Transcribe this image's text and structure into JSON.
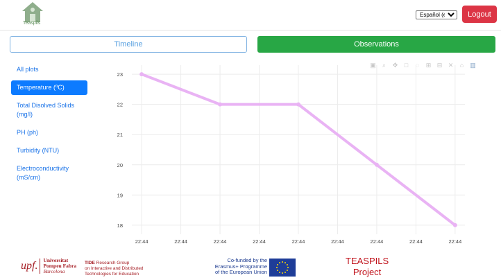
{
  "header": {
    "logo_text": "Teaspils",
    "language_selected": "Español (es)",
    "logout_label": "Logout"
  },
  "tabs": {
    "timeline_label": "Timeline",
    "observations_label": "Observations"
  },
  "sidebar": {
    "items": [
      {
        "label": "All plots",
        "active": false
      },
      {
        "label": "Temperature (ºC)",
        "active": true
      },
      {
        "label": "Total Disolved Solids (mg/l)",
        "active": false
      },
      {
        "label": "PH (ph)",
        "active": false
      },
      {
        "label": "Turbidity (NTU)",
        "active": false
      },
      {
        "label": "Electroconductivity (mS/cm)",
        "active": false
      }
    ]
  },
  "modebar_icons": [
    "camera-icon",
    "zoom-icon",
    "pan-icon",
    "box-select-icon",
    "lasso-icon",
    "zoom-in-icon",
    "zoom-out-icon",
    "autoscale-icon",
    "reset-axes-icon",
    "plotly-logo-icon"
  ],
  "chart_data": {
    "type": "line",
    "x_tick_labels": [
      "22:44",
      "22:44",
      "22:44",
      "22:44",
      "22:44",
      "22:44",
      "22:44",
      "22:44",
      "22:44"
    ],
    "x": [
      0,
      2,
      4,
      6,
      8
    ],
    "series": [
      {
        "values": [
          23,
          22,
          22,
          20,
          18
        ],
        "color": "#e9b3f4"
      }
    ],
    "y_ticks": [
      18,
      19,
      20,
      21,
      22,
      23
    ],
    "ylim": [
      17.7,
      23.3
    ],
    "xlim": [
      -0.25,
      8.25
    ],
    "grid": true
  },
  "footer": {
    "upf_mark": "upf.",
    "upf_line1": "Universitat",
    "upf_line2": "Pompeu Fabra",
    "upf_line3": "Barcelona",
    "tide_line1_bold": "TIDE",
    "tide_line1_rest": " Research Group",
    "tide_line2": "on Interactive and Distributed",
    "tide_line3": "Technologies for Education",
    "erasmus_line1": "Co-funded by the",
    "erasmus_line2": "Erasmus+ Programme",
    "erasmus_line3": "of the European Union",
    "teaspils_line1": "TEASPILS",
    "teaspils_line2": "Project"
  }
}
